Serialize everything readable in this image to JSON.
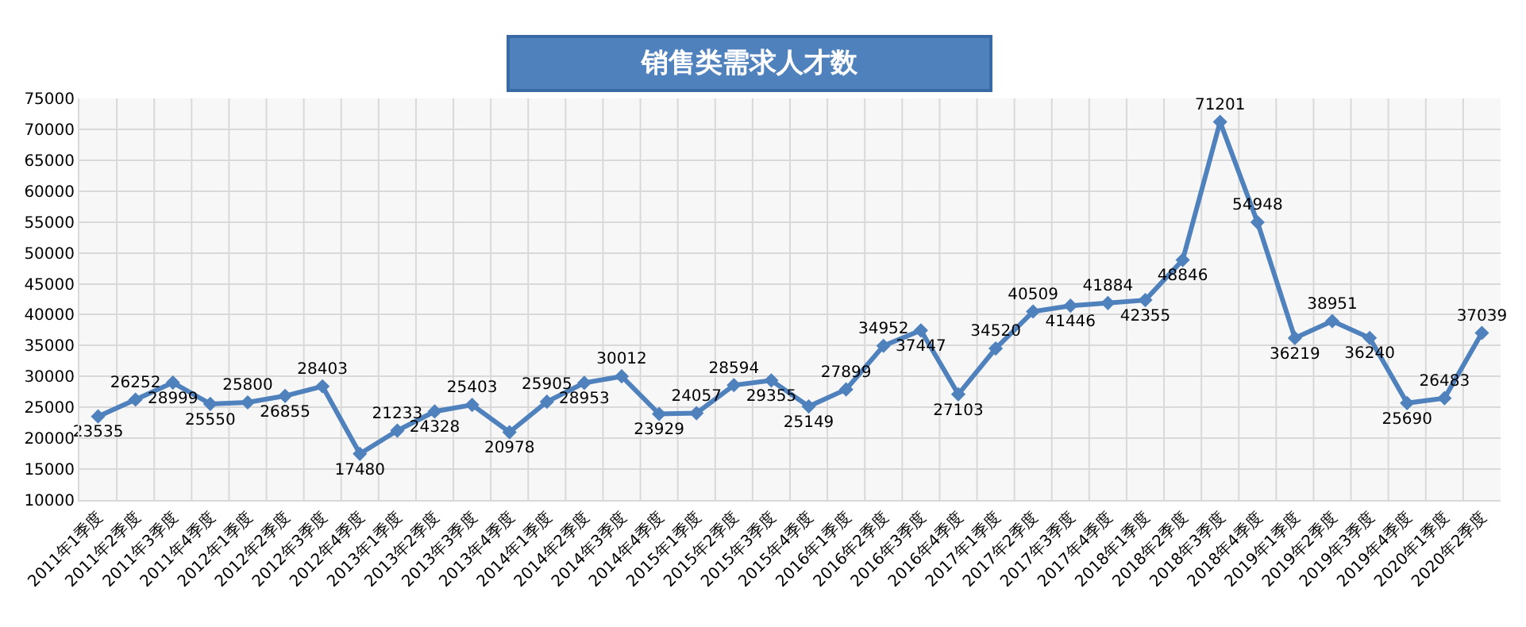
{
  "chart_data": {
    "type": "line",
    "title": "销售类需求人才数",
    "categories": [
      "2011年1季度",
      "2011年2季度",
      "2011年3季度",
      "2011年4季度",
      "2012年1季度",
      "2012年2季度",
      "2012年3季度",
      "2012年4季度",
      "2013年1季度",
      "2013年2季度",
      "2013年3季度",
      "2013年4季度",
      "2014年1季度",
      "2014年2季度",
      "2014年3季度",
      "2014年4季度",
      "2015年1季度",
      "2015年2季度",
      "2015年3季度",
      "2015年4季度",
      "2016年1季度",
      "2016年2季度",
      "2016年3季度",
      "2016年4季度",
      "2017年1季度",
      "2017年2季度",
      "2017年3季度",
      "2017年4季度",
      "2018年1季度",
      "2018年2季度",
      "2018年3季度",
      "2018年4季度",
      "2019年1季度",
      "2019年2季度",
      "2019年3季度",
      "2019年4季度",
      "2020年1季度",
      "2020年2季度"
    ],
    "values": [
      23535,
      26252,
      28999,
      25550,
      25800,
      26855,
      28403,
      17480,
      21233,
      24328,
      25403,
      20978,
      25905,
      28953,
      30012,
      23929,
      24057,
      28594,
      29355,
      25149,
      27899,
      34952,
      37447,
      27103,
      34520,
      40509,
      41446,
      41884,
      42355,
      48846,
      71201,
      54948,
      36219,
      38951,
      36240,
      25690,
      26483,
      37039
    ],
    "color": "#4f81bd",
    "marker": "diamond",
    "line_style": "solid",
    "data_labels": true,
    "ylim": [
      10000,
      75000
    ],
    "yticks": [
      10000,
      15000,
      20000,
      25000,
      30000,
      35000,
      40000,
      45000,
      50000,
      55000,
      60000,
      65000,
      70000,
      75000
    ],
    "grid": true
  }
}
